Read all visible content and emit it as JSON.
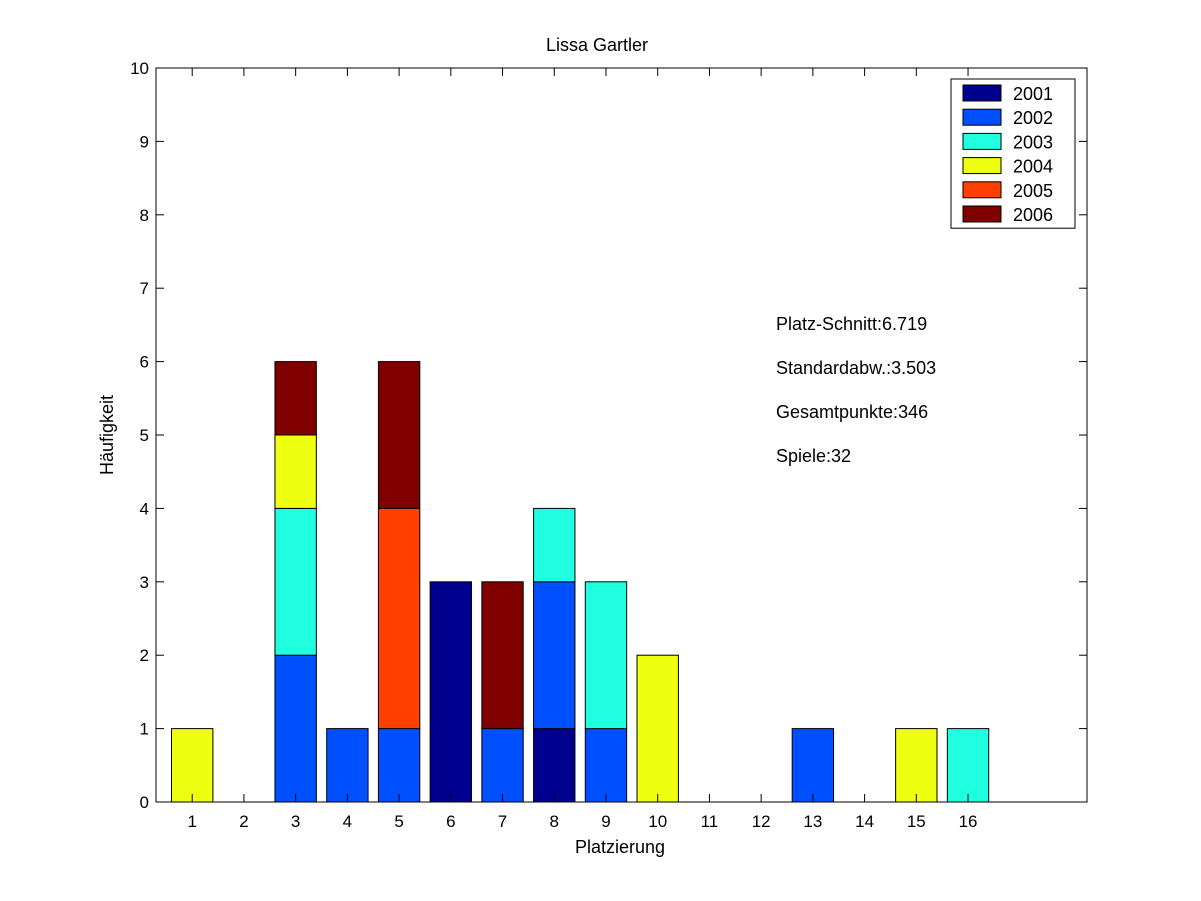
{
  "chart_data": {
    "type": "bar",
    "stacked": true,
    "title": "Lissa Gartler",
    "xlabel": "Platzierung",
    "ylabel": "Häufigkeit",
    "xlim": [
      0.3,
      18.3
    ],
    "ylim": [
      0,
      10
    ],
    "categories": [
      "1",
      "2",
      "3",
      "4",
      "5",
      "6",
      "7",
      "8",
      "9",
      "10",
      "11",
      "12",
      "13",
      "14",
      "15",
      "16"
    ],
    "yticks": [
      "0",
      "1",
      "2",
      "3",
      "4",
      "5",
      "6",
      "7",
      "8",
      "9",
      "10"
    ],
    "series": [
      {
        "name": "2001",
        "color": "#00008f",
        "values": [
          0,
          0,
          0,
          0,
          0,
          3,
          0,
          1,
          0,
          0,
          0,
          0,
          0,
          0,
          0,
          0
        ]
      },
      {
        "name": "2002",
        "color": "#0050ff",
        "values": [
          0,
          0,
          2,
          1,
          1,
          0,
          1,
          2,
          1,
          0,
          0,
          0,
          1,
          0,
          0,
          0
        ]
      },
      {
        "name": "2003",
        "color": "#20ffdf",
        "values": [
          0,
          0,
          2,
          0,
          0,
          0,
          0,
          1,
          2,
          0,
          0,
          0,
          0,
          0,
          0,
          1
        ]
      },
      {
        "name": "2004",
        "color": "#efff10",
        "values": [
          1,
          0,
          1,
          0,
          0,
          0,
          0,
          0,
          0,
          2,
          0,
          0,
          0,
          0,
          1,
          0
        ]
      },
      {
        "name": "2005",
        "color": "#ff4000",
        "values": [
          0,
          0,
          0,
          0,
          3,
          0,
          0,
          0,
          0,
          0,
          0,
          0,
          0,
          0,
          0,
          0
        ]
      },
      {
        "name": "2006",
        "color": "#800000",
        "values": [
          0,
          0,
          1,
          0,
          2,
          0,
          2,
          0,
          0,
          0,
          0,
          0,
          0,
          0,
          0,
          0
        ]
      }
    ],
    "legend_position": "top-right",
    "grid": false,
    "annotations": [
      "Platz-Schnitt:6.719",
      "Standardabw.:3.503",
      "Gesamtpunkte:346",
      "Spiele:32"
    ]
  }
}
